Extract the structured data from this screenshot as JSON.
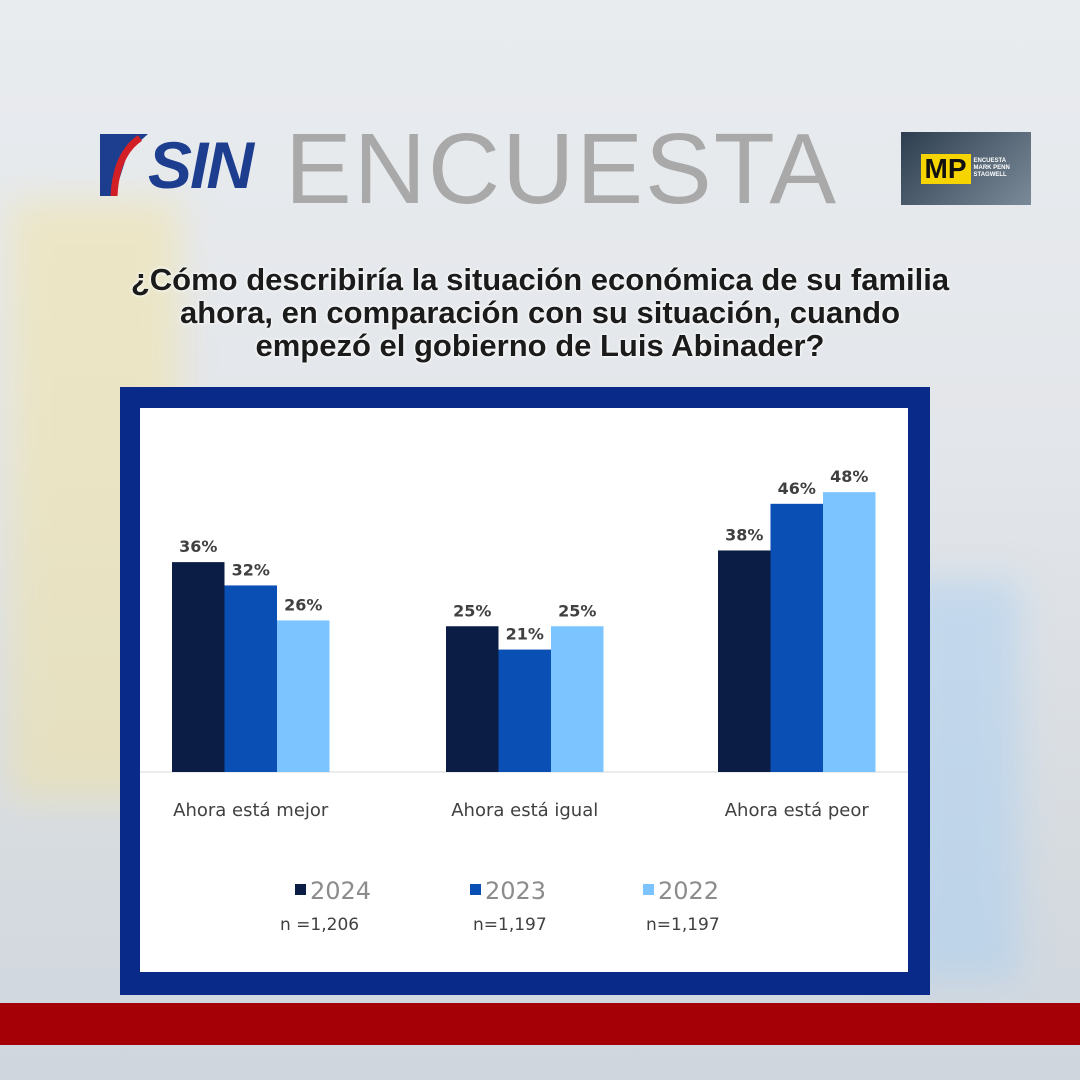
{
  "header": {
    "brand": "SIN",
    "title": "ENCUESTA",
    "partner_logo": "MP",
    "partner_small": "ENCUESTA MARK PENN STAGWELL"
  },
  "question": [
    "¿Cómo describiría la situación económica de su familia",
    "ahora, en comparación con su situación, cuando",
    "empezó el gobierno de Luis Abinader?"
  ],
  "chart_data": {
    "type": "bar",
    "categories": [
      "Ahora está mejor",
      "Ahora está igual",
      "Ahora está peor"
    ],
    "series": [
      {
        "name": "2024",
        "n": "n =1,206",
        "color": "#0b1d45",
        "values": [
          36,
          25,
          38
        ]
      },
      {
        "name": "2023",
        "n": "n=1,197",
        "color": "#0a4fb4",
        "values": [
          32,
          21,
          46
        ]
      },
      {
        "name": "2022",
        "n": "n=1,197",
        "color": "#7cc4ff",
        "values": [
          26,
          25,
          48
        ]
      }
    ],
    "ylim": [
      0,
      50
    ],
    "grid": false,
    "legend": "bottom",
    "value_suffix": "%"
  }
}
